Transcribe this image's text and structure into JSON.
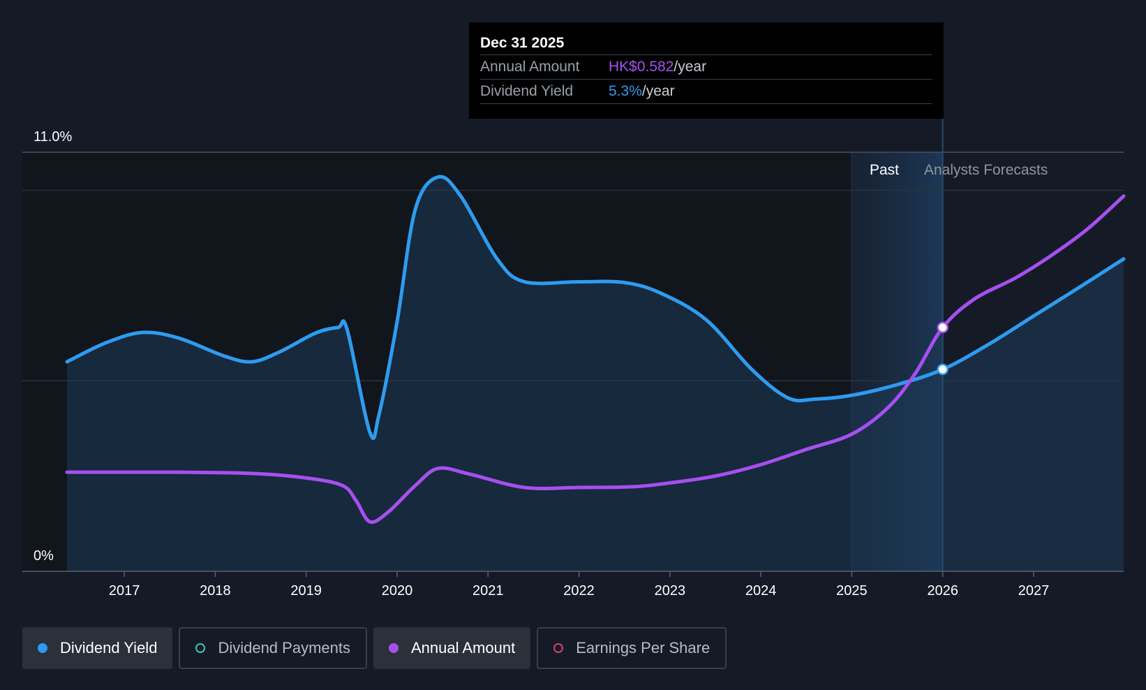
{
  "chart_data": {
    "type": "line",
    "y_axis": {
      "top_label": "11.0%",
      "bottom_label": "0%",
      "ylim": [
        0,
        11
      ]
    },
    "x_ticks": [
      "2017",
      "2018",
      "2019",
      "2020",
      "2021",
      "2022",
      "2023",
      "2024",
      "2025",
      "2026",
      "2027"
    ],
    "xlim": [
      2016.37,
      2027.99
    ],
    "regions": {
      "past_label": "Past",
      "forecast_label": "Analysts Forecasts",
      "divider_x": 2026.0
    },
    "series": [
      {
        "name": "Dividend Yield",
        "color": "#2d9cf0",
        "filled": true,
        "points": [
          [
            2016.37,
            5.5
          ],
          [
            2016.8,
            6.0
          ],
          [
            2017.2,
            6.27
          ],
          [
            2017.6,
            6.12
          ],
          [
            2018.1,
            5.65
          ],
          [
            2018.4,
            5.5
          ],
          [
            2018.7,
            5.75
          ],
          [
            2019.1,
            6.25
          ],
          [
            2019.35,
            6.4
          ],
          [
            2019.45,
            6.35
          ],
          [
            2019.7,
            3.65
          ],
          [
            2019.8,
            4.1
          ],
          [
            2020.0,
            6.55
          ],
          [
            2020.2,
            9.5
          ],
          [
            2020.45,
            10.35
          ],
          [
            2020.7,
            9.85
          ],
          [
            2021.1,
            8.2
          ],
          [
            2021.4,
            7.6
          ],
          [
            2022.0,
            7.6
          ],
          [
            2022.5,
            7.58
          ],
          [
            2022.9,
            7.3
          ],
          [
            2023.4,
            6.6
          ],
          [
            2023.9,
            5.3
          ],
          [
            2024.3,
            4.55
          ],
          [
            2024.6,
            4.52
          ],
          [
            2025.0,
            4.62
          ],
          [
            2025.5,
            4.9
          ],
          [
            2026.0,
            5.3
          ],
          [
            2026.5,
            5.95
          ],
          [
            2027.0,
            6.7
          ],
          [
            2027.5,
            7.45
          ],
          [
            2027.99,
            8.2
          ]
        ]
      },
      {
        "name": "Annual Amount",
        "color": "#a64ff0",
        "filled": false,
        "points": [
          [
            2016.37,
            2.6
          ],
          [
            2017.0,
            2.6
          ],
          [
            2017.6,
            2.6
          ],
          [
            2018.4,
            2.57
          ],
          [
            2019.0,
            2.45
          ],
          [
            2019.4,
            2.25
          ],
          [
            2019.55,
            1.85
          ],
          [
            2019.7,
            1.3
          ],
          [
            2019.9,
            1.55
          ],
          [
            2020.2,
            2.25
          ],
          [
            2020.45,
            2.7
          ],
          [
            2020.8,
            2.55
          ],
          [
            2021.4,
            2.2
          ],
          [
            2022.0,
            2.2
          ],
          [
            2022.6,
            2.22
          ],
          [
            2023.0,
            2.32
          ],
          [
            2023.5,
            2.5
          ],
          [
            2024.0,
            2.8
          ],
          [
            2024.5,
            3.2
          ],
          [
            2025.0,
            3.6
          ],
          [
            2025.4,
            4.3
          ],
          [
            2025.7,
            5.2
          ],
          [
            2026.0,
            6.4
          ],
          [
            2026.35,
            7.15
          ],
          [
            2026.8,
            7.7
          ],
          [
            2027.2,
            8.3
          ],
          [
            2027.6,
            9.0
          ],
          [
            2027.99,
            9.85
          ]
        ]
      }
    ],
    "highlight": {
      "x": 2026.0,
      "yield": 5.3,
      "annual_amount_chart_y": 6.4
    }
  },
  "tooltip": {
    "date": "Dec 31 2025",
    "rows": [
      {
        "label": "Annual Amount",
        "value": "HK$0.582",
        "unit": "/year",
        "color": "#a64ff0"
      },
      {
        "label": "Dividend Yield",
        "value": "5.3%",
        "unit": "/year",
        "color": "#2d9cf0"
      }
    ]
  },
  "legend": [
    {
      "label": "Dividend Yield",
      "color": "#2d9cf0",
      "active": true
    },
    {
      "label": "Dividend Payments",
      "color": "#3ec3b6",
      "active": false
    },
    {
      "label": "Annual Amount",
      "color": "#a64ff0",
      "active": true
    },
    {
      "label": "Earnings Per Share",
      "color": "#d6416f",
      "active": false
    }
  ]
}
